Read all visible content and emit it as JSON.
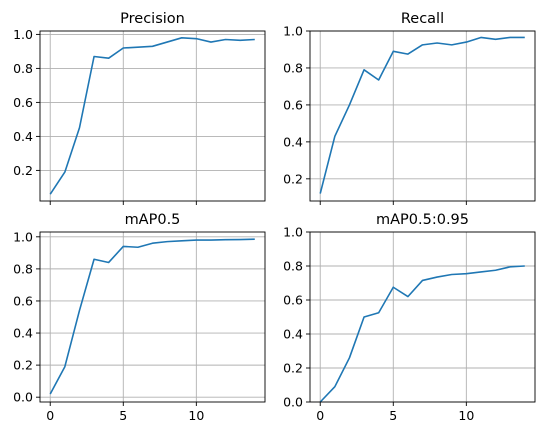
{
  "chart_data": [
    {
      "type": "line",
      "title": "Precision",
      "x": [
        0,
        1,
        2,
        3,
        4,
        5,
        6,
        7,
        8,
        9,
        10,
        11,
        12,
        13,
        14
      ],
      "series": [
        {
          "values": [
            0.06,
            0.19,
            0.45,
            0.87,
            0.86,
            0.92,
            0.925,
            0.93,
            0.955,
            0.98,
            0.975,
            0.955,
            0.97,
            0.965,
            0.97
          ]
        }
      ],
      "xlim": [
        -0.7,
        14.7
      ],
      "ylim": [
        0.02,
        1.02
      ],
      "xticks": [
        0,
        5,
        10
      ],
      "xtick_labels": [
        "",
        "",
        ""
      ],
      "yticks": [
        0.2,
        0.4,
        0.6,
        0.8,
        1.0
      ],
      "ytick_labels": [
        "0.2",
        "0.4",
        "0.6",
        "0.8",
        "1.0"
      ],
      "grid": true
    },
    {
      "type": "line",
      "title": "Recall",
      "x": [
        0,
        1,
        2,
        3,
        4,
        5,
        6,
        7,
        8,
        9,
        10,
        11,
        12,
        13,
        14
      ],
      "series": [
        {
          "values": [
            0.12,
            0.43,
            0.6,
            0.79,
            0.735,
            0.89,
            0.875,
            0.925,
            0.935,
            0.925,
            0.94,
            0.965,
            0.955,
            0.965,
            0.965
          ]
        }
      ],
      "xlim": [
        -0.7,
        14.7
      ],
      "ylim": [
        0.08,
        1.0
      ],
      "xticks": [
        0,
        5,
        10
      ],
      "xtick_labels": [
        "",
        "",
        ""
      ],
      "yticks": [
        0.2,
        0.4,
        0.6,
        0.8,
        1.0
      ],
      "ytick_labels": [
        "0.2",
        "0.4",
        "0.6",
        "0.8",
        "1.0"
      ],
      "grid": true
    },
    {
      "type": "line",
      "title": "mAP0.5",
      "x": [
        0,
        1,
        2,
        3,
        4,
        5,
        6,
        7,
        8,
        9,
        10,
        11,
        12,
        13,
        14
      ],
      "series": [
        {
          "values": [
            0.02,
            0.19,
            0.54,
            0.86,
            0.84,
            0.94,
            0.935,
            0.96,
            0.97,
            0.975,
            0.98,
            0.98,
            0.982,
            0.983,
            0.985
          ]
        }
      ],
      "xlim": [
        -0.7,
        14.7
      ],
      "ylim": [
        -0.03,
        1.03
      ],
      "xticks": [
        0,
        5,
        10
      ],
      "xtick_labels": [
        "0",
        "5",
        "10"
      ],
      "yticks": [
        0.0,
        0.2,
        0.4,
        0.6,
        0.8,
        1.0
      ],
      "ytick_labels": [
        "0.0",
        "0.2",
        "0.4",
        "0.6",
        "0.8",
        "1.0"
      ],
      "grid": true
    },
    {
      "type": "line",
      "title": "mAP0.5:0.95",
      "x": [
        0,
        1,
        2,
        3,
        4,
        5,
        6,
        7,
        8,
        9,
        10,
        11,
        12,
        13,
        14
      ],
      "series": [
        {
          "values": [
            0.0,
            0.09,
            0.26,
            0.5,
            0.525,
            0.675,
            0.62,
            0.715,
            0.735,
            0.75,
            0.755,
            0.765,
            0.775,
            0.795,
            0.8
          ]
        }
      ],
      "xlim": [
        -0.7,
        14.7
      ],
      "ylim": [
        0.0,
        1.0
      ],
      "xticks": [
        0,
        5,
        10
      ],
      "xtick_labels": [
        "0",
        "5",
        "10"
      ],
      "yticks": [
        0.0,
        0.2,
        0.4,
        0.6,
        0.8,
        1.0
      ],
      "ytick_labels": [
        "0.0",
        "0.2",
        "0.4",
        "0.6",
        "0.8",
        "1.0"
      ],
      "grid": true
    }
  ],
  "colors": {
    "line": "#1f77b4",
    "grid": "#b0b0b0"
  }
}
